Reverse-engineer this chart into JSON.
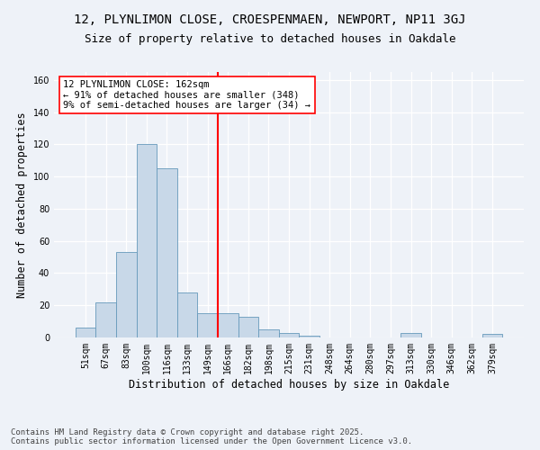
{
  "title_line1": "12, PLYNLIMON CLOSE, CROESPENMAEN, NEWPORT, NP11 3GJ",
  "title_line2": "Size of property relative to detached houses in Oakdale",
  "xlabel": "Distribution of detached houses by size in Oakdale",
  "ylabel": "Number of detached properties",
  "categories": [
    "51sqm",
    "67sqm",
    "83sqm",
    "100sqm",
    "116sqm",
    "133sqm",
    "149sqm",
    "166sqm",
    "182sqm",
    "198sqm",
    "215sqm",
    "231sqm",
    "248sqm",
    "264sqm",
    "280sqm",
    "297sqm",
    "313sqm",
    "330sqm",
    "346sqm",
    "362sqm",
    "379sqm"
  ],
  "values": [
    6,
    22,
    53,
    120,
    105,
    28,
    15,
    15,
    13,
    5,
    3,
    1,
    0,
    0,
    0,
    0,
    3,
    0,
    0,
    0,
    2
  ],
  "bar_color": "#c8d8e8",
  "bar_edge_color": "#6699bb",
  "vline_color": "red",
  "vline_x_index": 7,
  "annotation_text": "12 PLYNLIMON CLOSE: 162sqm\n← 91% of detached houses are smaller (348)\n9% of semi-detached houses are larger (34) →",
  "annotation_box_facecolor": "white",
  "annotation_box_edgecolor": "red",
  "ylim_max": 165,
  "yticks": [
    0,
    20,
    40,
    60,
    80,
    100,
    120,
    140,
    160
  ],
  "background_color": "#eef2f8",
  "grid_color": "#ffffff",
  "footer_line1": "Contains HM Land Registry data © Crown copyright and database right 2025.",
  "footer_line2": "Contains public sector information licensed under the Open Government Licence v3.0.",
  "title_fontsize": 10,
  "subtitle_fontsize": 9,
  "axis_label_fontsize": 8.5,
  "tick_fontsize": 7,
  "annotation_fontsize": 7.5,
  "footer_fontsize": 6.5
}
